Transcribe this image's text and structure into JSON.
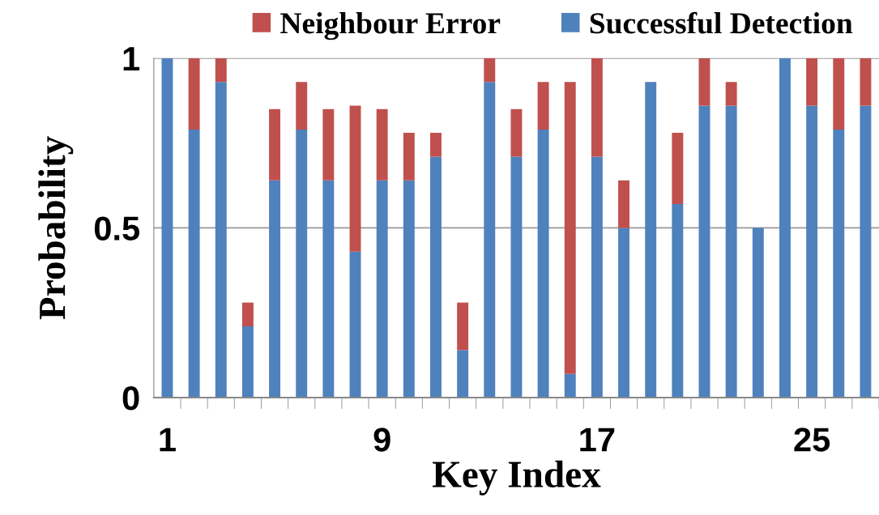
{
  "chart_data": {
    "type": "bar",
    "stacked": true,
    "xlabel": "Key Index",
    "ylabel": "Probability",
    "categories": [
      "1",
      null,
      null,
      null,
      null,
      null,
      null,
      null,
      "9",
      null,
      null,
      null,
      null,
      null,
      null,
      null,
      "17",
      null,
      null,
      null,
      null,
      null,
      null,
      null,
      "25",
      null,
      null
    ],
    "series": [
      {
        "name": "Successful Detection",
        "color": "#4f81bd",
        "values": [
          1.0,
          0.79,
          0.93,
          0.21,
          0.64,
          0.79,
          0.64,
          0.43,
          0.64,
          0.64,
          0.71,
          0.14,
          0.93,
          0.71,
          0.79,
          0.07,
          0.71,
          0.5,
          0.93,
          0.57,
          0.86,
          0.86,
          0.5,
          1.0,
          0.86,
          0.79,
          0.86
        ]
      },
      {
        "name": "Neighbour Error",
        "color": "#c0504d",
        "values": [
          0,
          0.21,
          0.07,
          0.07,
          0.21,
          0.14,
          0.21,
          0.43,
          0.21,
          0.14,
          0.07,
          0.14,
          0.07,
          0.14,
          0.14,
          0.86,
          0.29,
          0.14,
          0,
          0.21,
          0.14,
          0.07,
          0,
          0,
          0.14,
          0.21,
          0.14
        ]
      }
    ],
    "ylim": [
      0,
      1
    ],
    "yticks": [
      0,
      0.5,
      1
    ],
    "grid": "y",
    "legend": "top"
  }
}
